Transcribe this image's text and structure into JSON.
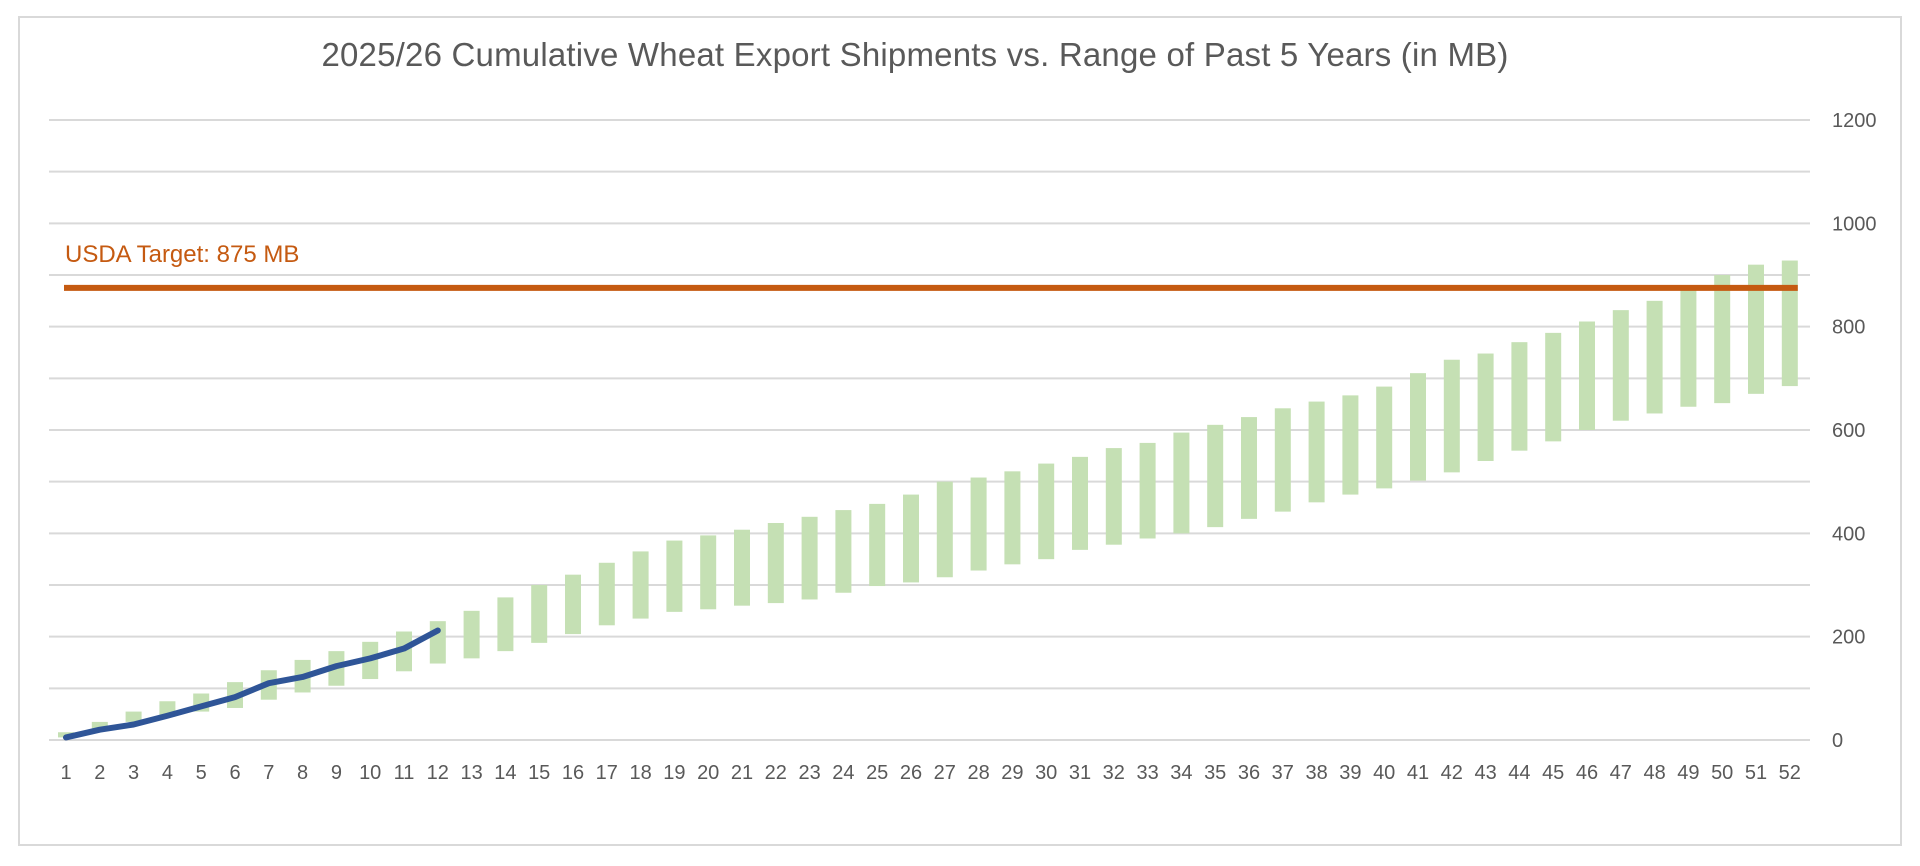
{
  "chart_data": {
    "type": "bar",
    "title": "2025/26 Cumulative Wheat Export Shipments vs. Range of Past 5 Years (in MB)",
    "xlabel": "",
    "ylabel": "",
    "xlim": [
      1,
      52
    ],
    "ylim": [
      0,
      1200
    ],
    "y_axis_side": "right",
    "y_ticks": [
      0,
      200,
      400,
      600,
      800,
      1000,
      1200
    ],
    "grid": true,
    "legend": "none",
    "categories": [
      "1",
      "2",
      "3",
      "4",
      "5",
      "6",
      "7",
      "8",
      "9",
      "10",
      "11",
      "12",
      "13",
      "14",
      "15",
      "16",
      "17",
      "18",
      "19",
      "20",
      "21",
      "22",
      "23",
      "24",
      "25",
      "26",
      "27",
      "28",
      "29",
      "30",
      "31",
      "32",
      "33",
      "34",
      "35",
      "36",
      "37",
      "38",
      "39",
      "40",
      "41",
      "42",
      "43",
      "44",
      "45",
      "46",
      "47",
      "48",
      "49",
      "50",
      "51",
      "52"
    ],
    "range_low": [
      5,
      20,
      35,
      45,
      55,
      62,
      78,
      92,
      105,
      118,
      133,
      148,
      158,
      172,
      188,
      205,
      222,
      235,
      248,
      253,
      260,
      265,
      272,
      285,
      298,
      305,
      315,
      328,
      340,
      350,
      368,
      378,
      390,
      400,
      412,
      428,
      442,
      460,
      475,
      487,
      502,
      518,
      540,
      560,
      578,
      600,
      618,
      632,
      645,
      652,
      670,
      685
    ],
    "range_high": [
      15,
      35,
      55,
      75,
      90,
      112,
      135,
      155,
      172,
      190,
      210,
      230,
      250,
      276,
      300,
      320,
      343,
      365,
      386,
      396,
      407,
      420,
      432,
      445,
      457,
      475,
      500,
      508,
      520,
      535,
      548,
      565,
      575,
      595,
      610,
      625,
      642,
      655,
      667,
      684,
      710,
      736,
      748,
      770,
      788,
      810,
      832,
      850,
      875,
      900,
      920,
      928
    ],
    "current_2025_26": [
      5,
      20,
      30,
      47,
      65,
      83,
      110,
      122,
      143,
      158,
      177,
      212
    ],
    "target_value": 875,
    "target_label": "USDA Target: 875 MB",
    "colors": {
      "range_bar": "#c5e0b4",
      "current_line": "#2f5597",
      "target_line": "#c55a11",
      "gridline": "#d9d9d9",
      "text": "#595959"
    }
  }
}
